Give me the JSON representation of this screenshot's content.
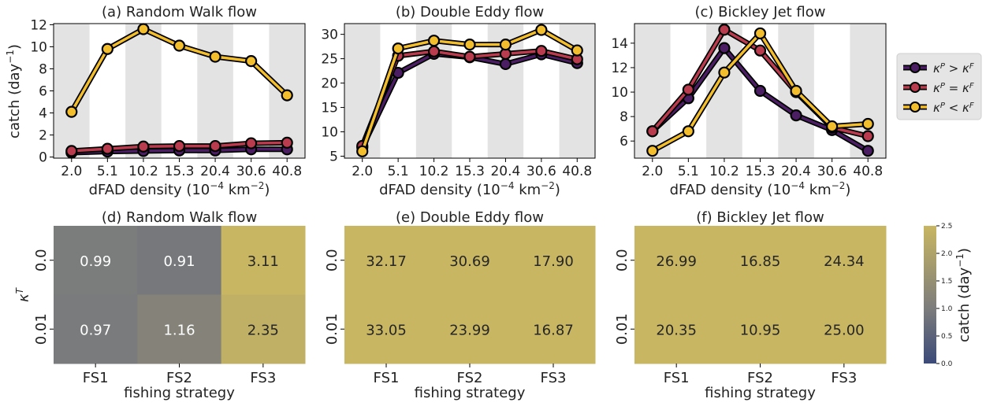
{
  "figure": {
    "ylabel_top": "catch (day$^{-1}$)"
  },
  "colors": {
    "kp_gt_kf": "#4b1e63",
    "kp_eq_kf": "#b83b4e",
    "kp_lt_kf": "#f2be2e",
    "band": "#e3e3e3",
    "cmap_low": "#3b4a78",
    "cmap_mid": "#7c7c7c",
    "cmap_high": "#c8b662"
  },
  "legend": {
    "placement": "right",
    "entries": [
      {
        "series": "kp_gt_kf",
        "label": "κP > κF"
      },
      {
        "series": "kp_eq_kf",
        "label": "κP = κF"
      },
      {
        "series": "kp_lt_kf",
        "label": "κP < κF"
      }
    ]
  },
  "colorbar": {
    "label": "catch (day-1)",
    "ticks": [
      "0.0",
      "0.5",
      "1.0",
      "1.5",
      "2.0",
      "2.5"
    ],
    "range": [
      0,
      2.5
    ]
  },
  "chart_data": [
    {
      "type": "line",
      "title": "(a) Random Walk flow",
      "xlabel": "dFAD density (10-4 km-2)",
      "ylabel": "catch (day-1)",
      "categories": [
        "2.0",
        "5.1",
        "10.2",
        "15.3",
        "20.4",
        "30.6",
        "40.8"
      ],
      "ylim": [
        -0.1,
        12.1
      ],
      "yticks": [
        0,
        2,
        4,
        6,
        8,
        10,
        12
      ],
      "series": [
        {
          "name": "κP > κF",
          "key": "kp_gt_kf",
          "values": [
            0.4,
            0.5,
            0.55,
            0.6,
            0.6,
            0.7,
            0.7
          ]
        },
        {
          "name": "κP = κF",
          "key": "kp_eq_kf",
          "values": [
            0.55,
            0.75,
            0.95,
            1.0,
            1.0,
            1.25,
            1.3
          ]
        },
        {
          "name": "κP < κF",
          "key": "kp_lt_kf",
          "values": [
            4.1,
            9.8,
            11.6,
            10.1,
            9.1,
            8.7,
            5.6
          ]
        }
      ]
    },
    {
      "type": "line",
      "title": "(b) Double Eddy flow",
      "xlabel": "dFAD density (10-4 km-2)",
      "ylabel": "",
      "categories": [
        "2.0",
        "5.1",
        "10.2",
        "15.3",
        "20.4",
        "30.6",
        "40.8"
      ],
      "ylim": [
        4.6,
        32.2
      ],
      "yticks": [
        5,
        10,
        15,
        20,
        25,
        30
      ],
      "series": [
        {
          "name": "κP > κF",
          "key": "kp_gt_kf",
          "values": [
            6.8,
            22.1,
            26.0,
            25.3,
            23.9,
            25.9,
            24.1
          ]
        },
        {
          "name": "κP = κF",
          "key": "kp_eq_kf",
          "values": [
            7.1,
            25.6,
            26.5,
            25.4,
            26.0,
            26.6,
            24.9
          ]
        },
        {
          "name": "κP < κF",
          "key": "kp_lt_kf",
          "values": [
            6.0,
            27.1,
            28.7,
            27.9,
            27.9,
            30.9,
            26.7
          ]
        }
      ]
    },
    {
      "type": "line",
      "title": "(c) Bickley Jet flow",
      "xlabel": "dFAD density (10-4 km-2)",
      "ylabel": "",
      "categories": [
        "2.0",
        "5.1",
        "10.2",
        "15.3",
        "20.4",
        "30.6",
        "40.8"
      ],
      "ylim": [
        4.6,
        15.6
      ],
      "yticks": [
        6,
        8,
        10,
        12,
        14
      ],
      "series": [
        {
          "name": "κP > κF",
          "key": "kp_gt_kf",
          "values": [
            6.8,
            9.5,
            13.6,
            10.1,
            8.1,
            6.9,
            5.2
          ]
        },
        {
          "name": "κP = κF",
          "key": "kp_eq_kf",
          "values": [
            6.8,
            10.2,
            15.1,
            13.4,
            10.0,
            7.1,
            6.4
          ]
        },
        {
          "name": "κP < κF",
          "key": "kp_lt_kf",
          "values": [
            5.2,
            6.8,
            11.6,
            14.8,
            10.1,
            7.2,
            7.4
          ]
        }
      ]
    },
    {
      "type": "heatmap",
      "title": "(d) Random Walk flow",
      "xlabel": "fishing strategy",
      "ylabel": "κT",
      "x": [
        "FS1",
        "FS2",
        "FS3"
      ],
      "y": [
        "0.0",
        "0.01"
      ],
      "values": [
        [
          0.99,
          0.91,
          3.11
        ],
        [
          0.97,
          1.16,
          2.35
        ]
      ],
      "labels": [
        [
          "0.99",
          "0.91",
          "3.11"
        ],
        [
          "0.97",
          "1.16",
          "2.35"
        ]
      ],
      "vmin": 0,
      "vmax": 2.5
    },
    {
      "type": "heatmap",
      "title": "(e) Double Eddy flow",
      "xlabel": "fishing strategy",
      "ylabel": "",
      "x": [
        "FS1",
        "FS2",
        "FS3"
      ],
      "y": [
        "0.0",
        "0.01"
      ],
      "values": [
        [
          32.17,
          30.69,
          17.9
        ],
        [
          33.05,
          23.99,
          16.87
        ]
      ],
      "labels": [
        [
          "32.17",
          "30.69",
          "17.90"
        ],
        [
          "33.05",
          "23.99",
          "16.87"
        ]
      ],
      "vmin": 0,
      "vmax": 2.5
    },
    {
      "type": "heatmap",
      "title": "(f) Bickley Jet flow",
      "xlabel": "fishing strategy",
      "ylabel": "",
      "x": [
        "FS1",
        "FS2",
        "FS3"
      ],
      "y": [
        "0.0",
        "0.01"
      ],
      "values": [
        [
          26.99,
          16.85,
          24.34
        ],
        [
          20.35,
          10.95,
          25.0
        ]
      ],
      "labels": [
        [
          "26.99",
          "16.85",
          "24.34"
        ],
        [
          "20.35",
          "10.95",
          "25.00"
        ]
      ],
      "vmin": 0,
      "vmax": 2.5
    }
  ]
}
